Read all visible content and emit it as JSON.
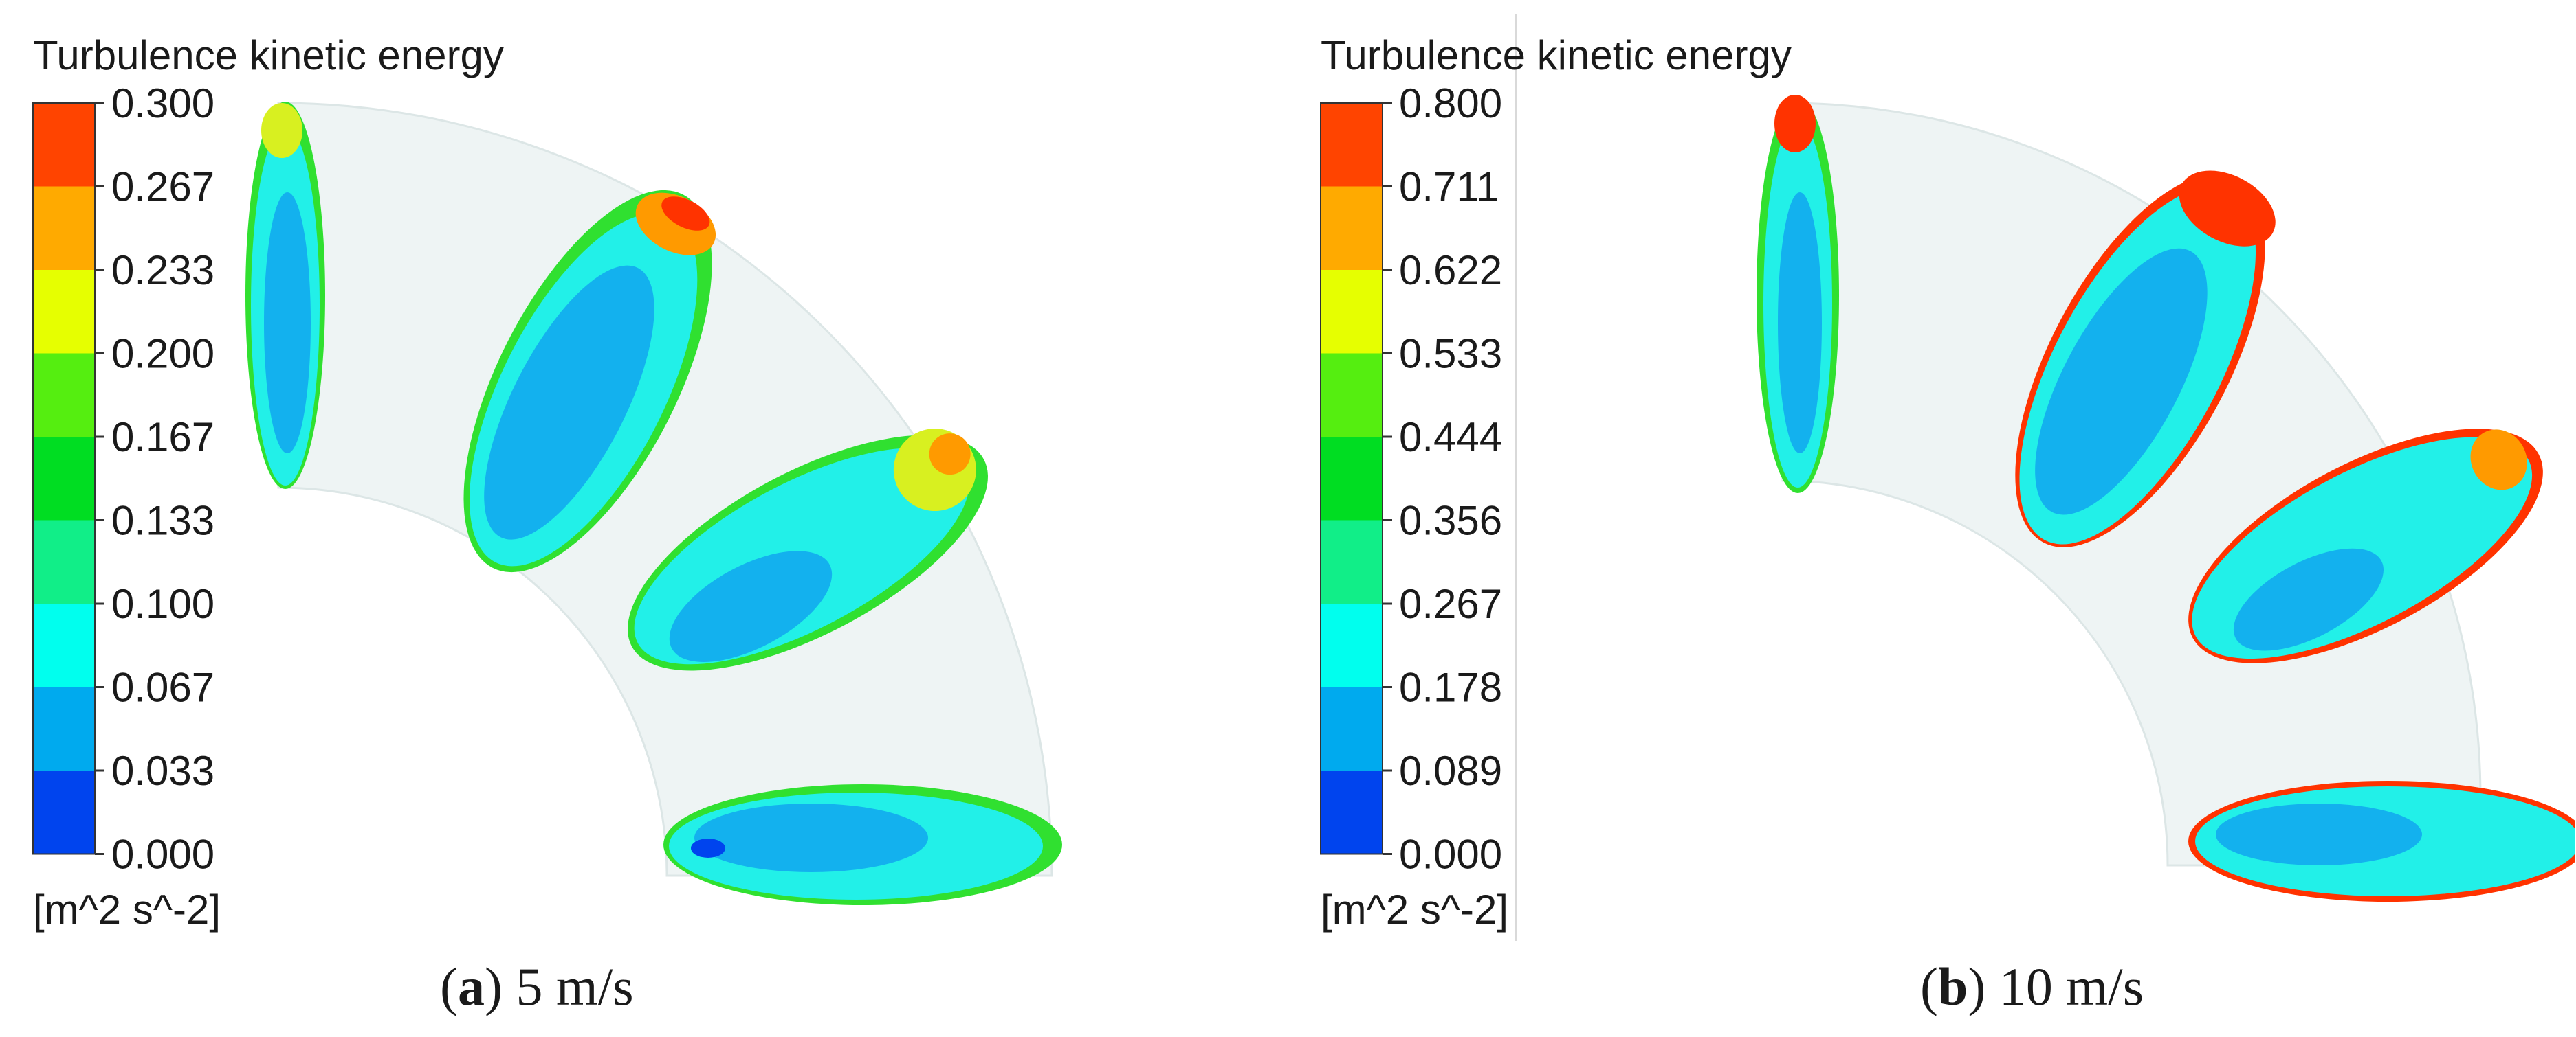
{
  "panels": [
    {
      "id": "a",
      "legend_title": "Turbulence kinetic energy",
      "unit": "[m^2 s^-2]",
      "caption_letter": "a",
      "caption_text": " 5 m/s",
      "ticks": [
        "0.300",
        "0.267",
        "0.233",
        "0.200",
        "0.167",
        "0.133",
        "0.100",
        "0.067",
        "0.033",
        "0.000"
      ]
    },
    {
      "id": "b",
      "legend_title": "Turbulence kinetic energy",
      "unit": "[m^2 s^-2]",
      "caption_letter": "b",
      "caption_text": " 10 m/s",
      "ticks": [
        "0.800",
        "0.711",
        "0.622",
        "0.533",
        "0.444",
        "0.356",
        "0.267",
        "0.178",
        "0.089",
        "0.000"
      ]
    }
  ],
  "colormap": [
    "#ff4400",
    "#ffaa00",
    "#e6ff00",
    "#55ee10",
    "#00dd22",
    "#11ee88",
    "#00ffee",
    "#00aaee",
    "#0044ee"
  ],
  "colors": {
    "pipe": "#eef4f4",
    "pipe_edge": "#dce6e6",
    "core_blue": "#13b1ee",
    "cyan": "#22f0e8",
    "green": "#30e030",
    "yellow": "#d8f020",
    "orange": "#ff9a00",
    "red": "#ff3300"
  }
}
